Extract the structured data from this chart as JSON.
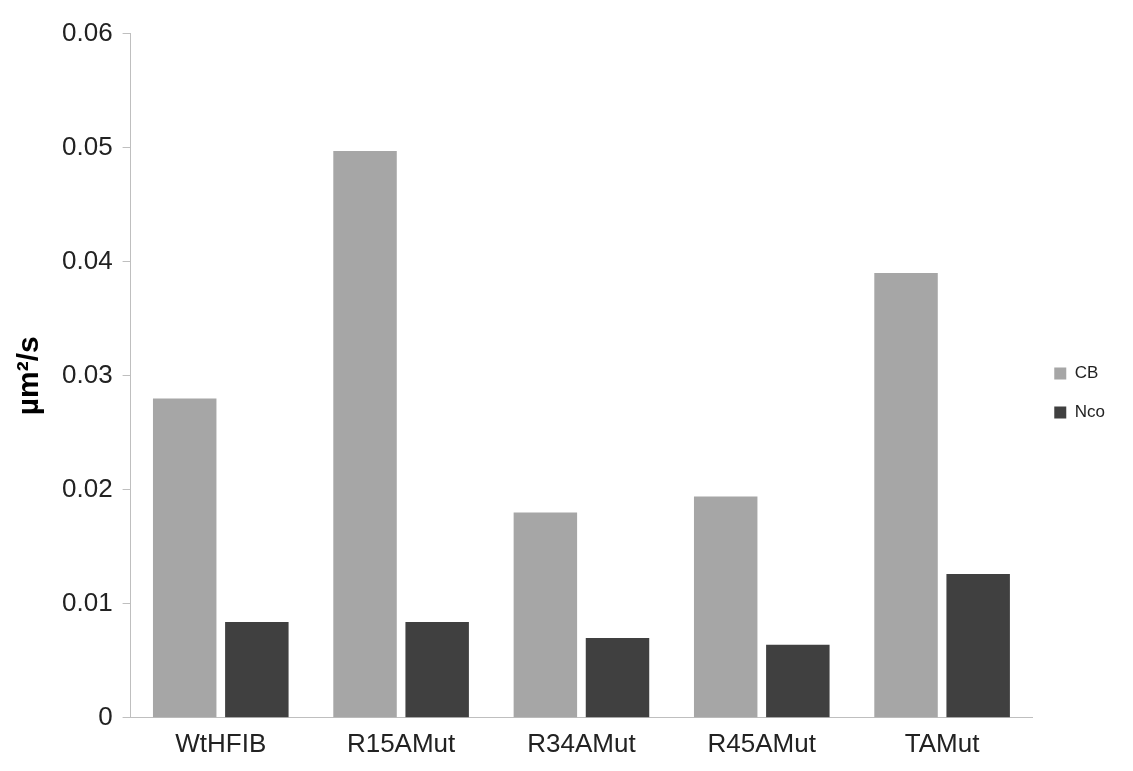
{
  "chart_data": {
    "type": "bar",
    "ylabel": "µm²/s",
    "categories": [
      "WtHFIB",
      "R15AMut",
      "R34AMut",
      "R45AMut",
      "TAMut"
    ],
    "series": [
      {
        "name": "CB",
        "color": "#a6a6a6",
        "values": [
          0.028,
          0.0497,
          0.018,
          0.0194,
          0.039
        ]
      },
      {
        "name": "Nco",
        "color": "#404040",
        "values": [
          0.0084,
          0.0084,
          0.007,
          0.0064,
          0.0126
        ]
      }
    ],
    "ylim": [
      0,
      0.06
    ],
    "yticks": [
      0,
      0.01,
      0.02,
      0.03,
      0.04,
      0.05,
      0.06
    ],
    "grid": false,
    "legend": "right"
  }
}
